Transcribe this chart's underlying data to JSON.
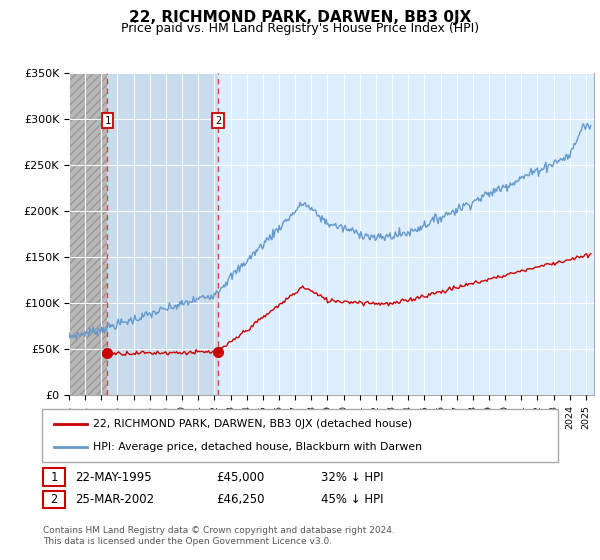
{
  "title": "22, RICHMOND PARK, DARWEN, BB3 0JX",
  "subtitle": "Price paid vs. HM Land Registry's House Price Index (HPI)",
  "legend_line1": "22, RICHMOND PARK, DARWEN, BB3 0JX (detached house)",
  "legend_line2": "HPI: Average price, detached house, Blackburn with Darwen",
  "sale1_label": "1",
  "sale1_date": "22-MAY-1995",
  "sale1_price_text": "£45,000",
  "sale1_pct": "32% ↓ HPI",
  "sale2_label": "2",
  "sale2_date": "25-MAR-2002",
  "sale2_price_text": "£46,250",
  "sale2_pct": "45% ↓ HPI",
  "sale1_year": 1995.38,
  "sale1_price": 45000,
  "sale2_year": 2002.23,
  "sale2_price": 46250,
  "hatch_start_year": 1993,
  "hatch_end_year": 1995.38,
  "shade_end_year": 2002.23,
  "ylim": [
    0,
    350000
  ],
  "xlim_start": 1993,
  "xlim_end": 2025.5,
  "line_color_red": "#cc0000",
  "line_color_blue": "#6699cc",
  "plot_bg": "#ddeeff",
  "shade_bg": "#ddeeff",
  "footnote": "Contains HM Land Registry data © Crown copyright and database right 2024.\nThis data is licensed under the Open Government Licence v3.0.",
  "title_fontsize": 11,
  "subtitle_fontsize": 9
}
